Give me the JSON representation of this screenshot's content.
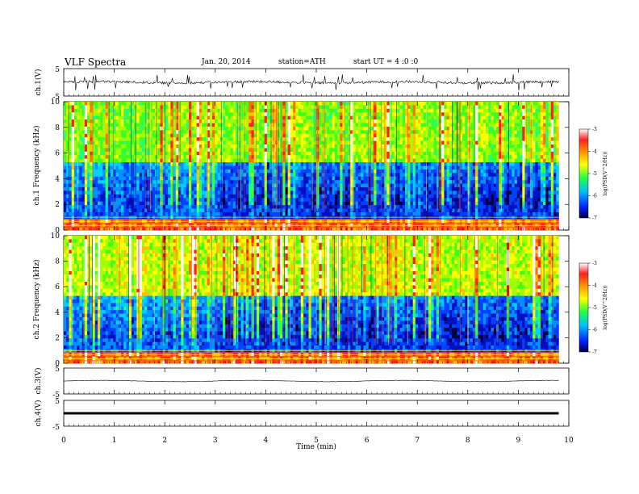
{
  "header": {
    "title": "VLF Spectra",
    "date": "Jan. 20, 2014",
    "station": "station=ATH",
    "start": "start UT = 4 :0 :0"
  },
  "colorbar": {
    "label": "log(PSD(V^2/Hz))",
    "ticks": [
      "-3",
      "-4",
      "-5",
      "-6",
      "-7"
    ],
    "colors": [
      "#ffffff",
      "#ff2020",
      "#ffa000",
      "#ffff00",
      "#20ff20",
      "#00d0ff",
      "#0030ff",
      "#000040"
    ]
  },
  "chart_data": [
    {
      "type": "line",
      "ylabel": "ch.1(V)",
      "ylim": [
        -5,
        5
      ],
      "yticks": [
        "5",
        "-5"
      ],
      "description_values": {
        "x_range_min": [
          0,
          9.8
        ],
        "baseline_V": 0,
        "noise_amplitude_V": 0.5,
        "spike_amplitude_V": 2.5
      }
    },
    {
      "type": "heatmap",
      "ylabel": "ch.1 Frequency (kHz)",
      "ylim": [
        0,
        10
      ],
      "yticks": [
        "0",
        "2",
        "4",
        "6",
        "8",
        "10"
      ],
      "x_range_min": [
        0,
        9.8
      ],
      "colorbar_range": [
        -7,
        -3
      ]
    },
    {
      "type": "heatmap",
      "ylabel": "ch.2 Frequency (kHz)",
      "ylim": [
        0,
        10
      ],
      "yticks": [
        "0",
        "2",
        "4",
        "6",
        "8",
        "10"
      ],
      "x_range_min": [
        0,
        9.8
      ],
      "colorbar_range": [
        -7,
        -3
      ]
    },
    {
      "type": "line",
      "ylabel": "ch.3(V)",
      "ylim": [
        -5,
        5
      ],
      "yticks": [
        "5",
        "-5"
      ],
      "baseline_V": 0
    },
    {
      "type": "line",
      "ylabel": "ch.4(V)",
      "ylim": [
        -5,
        5
      ],
      "yticks": [
        "5",
        "-5"
      ],
      "baseline_V": 0
    }
  ],
  "xaxis": {
    "label": "Time (min)",
    "range": [
      0,
      10
    ],
    "ticks": [
      "0",
      "1",
      "2",
      "3",
      "4",
      "5",
      "6",
      "7",
      "8",
      "9",
      "10"
    ]
  }
}
